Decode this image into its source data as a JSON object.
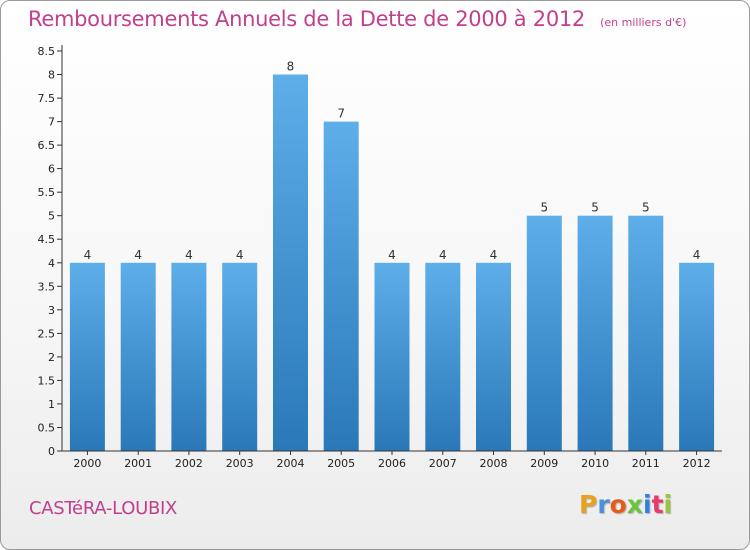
{
  "header": {
    "title": "Remboursements Annuels de la Dette de 2000 à 2012",
    "subtitle": "(en milliers d'€)"
  },
  "footer": {
    "commune": "CASTéRA-LOUBIX",
    "brand_letters": [
      "P",
      "r",
      "o",
      "x",
      "i",
      "t",
      "i"
    ],
    "brand_colors": [
      "#e8a020",
      "#4a8fd8",
      "#e85a1a",
      "#6cc43a",
      "#2f7fe0",
      "#e83a6a",
      "#9ac43a"
    ]
  },
  "colors": {
    "bar_top": "#5eaeea",
    "bar_bottom": "#2a78b8",
    "title": "#c0408d",
    "axis": "#333333"
  },
  "chart_data": {
    "type": "bar",
    "categories": [
      "2000",
      "2001",
      "2002",
      "2003",
      "2004",
      "2005",
      "2006",
      "2007",
      "2008",
      "2009",
      "2010",
      "2011",
      "2012"
    ],
    "values": [
      4,
      4,
      4,
      4,
      8,
      7,
      4,
      4,
      4,
      5,
      5,
      5,
      4
    ],
    "data_labels": [
      "4",
      "4",
      "4",
      "4",
      "8",
      "7",
      "4",
      "4",
      "4",
      "5",
      "5",
      "5",
      "4"
    ],
    "yticks": [
      "0",
      "0.5",
      "1",
      "1.5",
      "2",
      "2.5",
      "3",
      "3.5",
      "4",
      "4.5",
      "5",
      "5.5",
      "6",
      "6.5",
      "7",
      "7.5",
      "8",
      "8.5"
    ],
    "ylim": [
      0,
      8.5
    ],
    "grid": false
  }
}
